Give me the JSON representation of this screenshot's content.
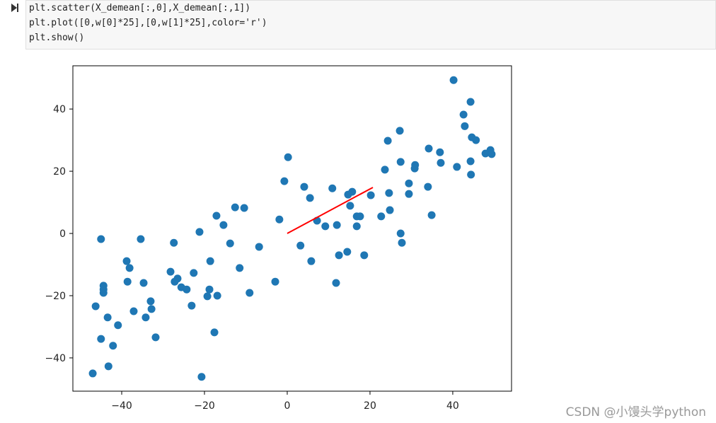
{
  "code": [
    "plt.scatter(X_demean[:,0],X_demean[:,1])",
    "plt.plot([0,w[0]*25],[0,w[1]*25],color='r')",
    "plt.show()"
  ],
  "chart_data": {
    "type": "scatter",
    "xlim": [
      -51.8,
      54.2
    ],
    "ylim": [
      -50.7,
      53.9
    ],
    "xticks": [
      {
        "value": -40,
        "label": "−40"
      },
      {
        "value": -20,
        "label": "−20"
      },
      0,
      20,
      40
    ],
    "yticks": [
      {
        "value": -40,
        "label": "−40"
      },
      {
        "value": -20,
        "label": "−20"
      },
      0,
      20,
      40
    ],
    "series": [
      {
        "type": "scatter",
        "color": "#1f77b4",
        "x": [
          40.2,
          44.3,
          42.6,
          42.9,
          44.6,
          45.6,
          27.2,
          24.3,
          0.2,
          34.2,
          36.9,
          30.9,
          30.8,
          27.4,
          23.6,
          41,
          37.1,
          44.3,
          44.4,
          47.9,
          49.1,
          49.4,
          -0.7,
          4.1,
          5.5,
          10.9,
          15.7,
          14.7,
          15.2,
          20.2,
          24.6,
          29.4,
          29.4,
          34,
          24.8,
          34.9,
          22.7,
          16.8,
          17.6,
          16.8,
          12,
          9.2,
          7.2,
          -1.9,
          -12.6,
          -10.4,
          -17.1,
          -15.4,
          -21.2,
          -13.8,
          -6.8,
          3.2,
          5.8,
          12.5,
          14.5,
          18.6,
          27.4,
          27.7,
          11.8,
          -2.9,
          -9.1,
          -11.5,
          -18.6,
          -45,
          -35.4,
          -27.4,
          -38.8,
          -38.1,
          -28.2,
          -22.6,
          -26.5,
          -27.2,
          -38.6,
          -34.7,
          -44.4,
          -44.4,
          -44.4,
          -25.6,
          -24.3,
          -18.8,
          -19.3,
          -16.9,
          -33,
          -32.8,
          -23.1,
          -37.1,
          -34.2,
          -43.4,
          -46.3,
          -40.9,
          -17.6,
          -31.8,
          -45,
          -42.1,
          -43.2,
          -47,
          -20.7
        ],
        "values": [
          49.3,
          42.3,
          38.2,
          34.5,
          30.9,
          30,
          33,
          29.8,
          24.5,
          27.3,
          26.1,
          22,
          20.9,
          23,
          20.5,
          21.4,
          22.7,
          23.2,
          18.9,
          25.7,
          26.8,
          25.5,
          16.8,
          15,
          11.4,
          14.5,
          13.4,
          12.5,
          8.9,
          12.3,
          13,
          16.1,
          12.7,
          15,
          7.5,
          5.9,
          5.5,
          5.5,
          5.5,
          2.3,
          2.7,
          2.3,
          4.1,
          4.5,
          8.4,
          8.2,
          5.7,
          2.7,
          0.5,
          -3.2,
          -4.3,
          -3.9,
          -8.9,
          -7,
          -5.9,
          -7,
          0,
          -3,
          -15.9,
          -15.5,
          -19.1,
          -11.1,
          -8.9,
          -1.8,
          -1.8,
          -3,
          -8.9,
          -11.1,
          -12.3,
          -12.7,
          -14.5,
          -15.5,
          -15.5,
          -15.9,
          -16.8,
          -18,
          -19.1,
          -17.3,
          -18,
          -18,
          -20.2,
          -20,
          -21.8,
          -24.3,
          -23.2,
          -25,
          -27,
          -27,
          -23.4,
          -29.5,
          -31.8,
          -33.4,
          -33.9,
          -36.1,
          -42.7,
          -45,
          -46.1
        ]
      },
      {
        "type": "line",
        "color": "#ff0000",
        "x": [
          0,
          20.7
        ],
        "values": [
          0,
          14.8
        ]
      }
    ]
  },
  "watermark": "CSDN @小馒头学python"
}
